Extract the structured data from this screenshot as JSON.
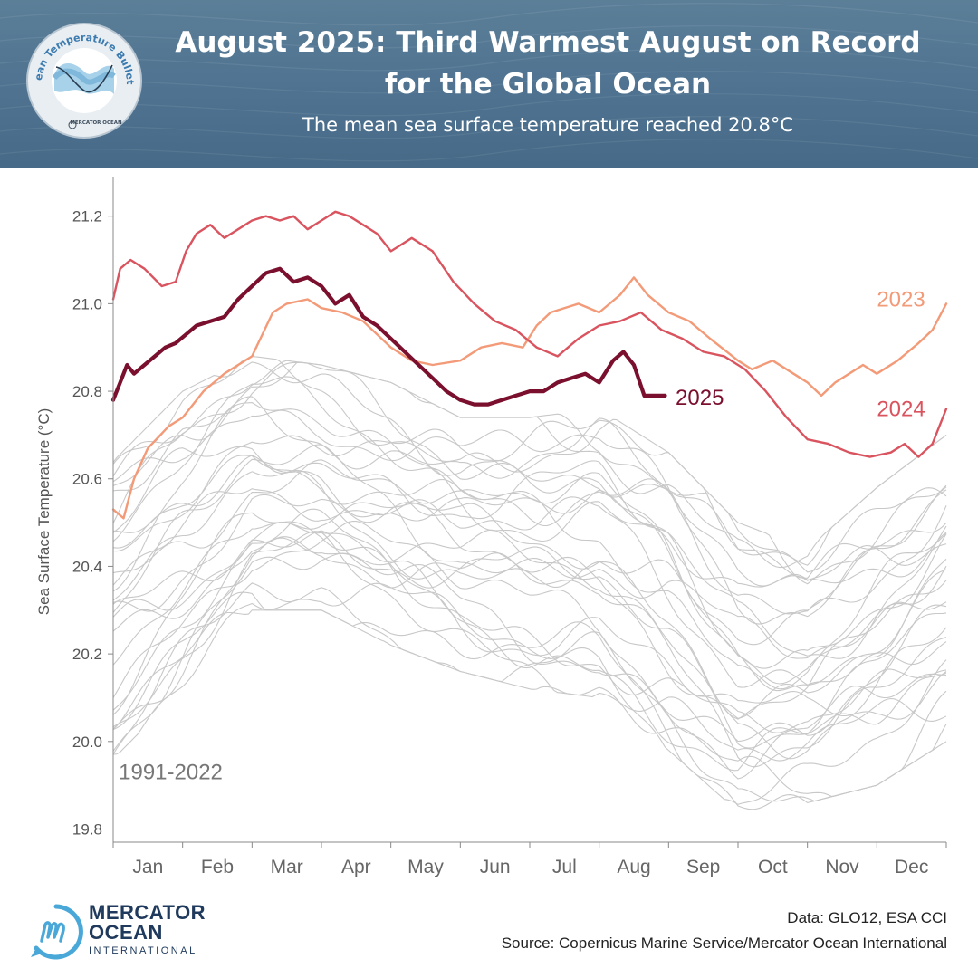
{
  "header": {
    "title_line1": "August 2025: Third Warmest August on Record",
    "title_line2": "for the Global Ocean",
    "subtitle": "The mean sea surface temperature reached 20.8°C"
  },
  "badge": {
    "ring_text": "Ocean Temperature Bulletin",
    "org": "MERCATOR OCEAN",
    "icon": "bulletin-badge-icon"
  },
  "footer": {
    "logo_line1": "MERCATOR",
    "logo_line2": "OCEAN",
    "logo_line3": "INTERNATIONAL",
    "data_credit": "Data: GLO12, ESA CCI",
    "source_credit": "Source: Copernicus Marine Service/Mercator Ocean International"
  },
  "colors": {
    "header_bg": "#4e7290",
    "y2025": "#7a0f2e",
    "y2024": "#d9545f",
    "y2023": "#f39a78",
    "historical": "#c8c8c8",
    "logo_blue": "#4aa8d8",
    "logo_text": "#1f3a5c"
  },
  "chart_data": {
    "type": "line",
    "title": "August 2025: Third Warmest August on Record for the Global Ocean",
    "ylabel": "Sea Surface Temperature (°C)",
    "xlabel": "",
    "ylim": [
      19.77,
      21.28
    ],
    "yticks": [
      19.8,
      20.0,
      20.2,
      20.4,
      20.6,
      20.8,
      21.0,
      21.2
    ],
    "grid": false,
    "x_unit": "month (0 = start of Jan, 12 = end of Dec)",
    "months": [
      "Jan",
      "Feb",
      "Mar",
      "Apr",
      "May",
      "Jun",
      "Jul",
      "Aug",
      "Sep",
      "Oct",
      "Nov",
      "Dec"
    ],
    "historical_label": "1991-2022",
    "historical_envelope": {
      "x": [
        0,
        1,
        2,
        3,
        4,
        5,
        6,
        7,
        8,
        9,
        10,
        11,
        12
      ],
      "low": [
        19.96,
        20.12,
        20.3,
        20.3,
        20.22,
        20.16,
        20.12,
        20.1,
        19.98,
        19.84,
        19.86,
        19.9,
        20.0
      ],
      "high": [
        20.64,
        20.8,
        20.88,
        20.86,
        20.82,
        20.74,
        20.74,
        20.76,
        20.66,
        20.5,
        20.44,
        20.58,
        20.7
      ]
    },
    "series": [
      {
        "name": "2023",
        "x": [
          0,
          0.15,
          0.3,
          0.5,
          0.8,
          1.0,
          1.3,
          1.6,
          2.0,
          2.3,
          2.5,
          2.8,
          3.0,
          3.3,
          3.6,
          4.0,
          4.3,
          4.6,
          5.0,
          5.3,
          5.6,
          5.9,
          6.1,
          6.3,
          6.7,
          7.0,
          7.3,
          7.5,
          7.7,
          8.0,
          8.3,
          8.6,
          9.0,
          9.2,
          9.5,
          9.8,
          10.0,
          10.2,
          10.4,
          10.6,
          10.8,
          11.0,
          11.3,
          11.6,
          11.8,
          12.0
        ],
        "y": [
          20.53,
          20.51,
          20.6,
          20.67,
          20.72,
          20.74,
          20.8,
          20.84,
          20.88,
          20.98,
          21.0,
          21.01,
          20.99,
          20.98,
          20.96,
          20.9,
          20.87,
          20.86,
          20.87,
          20.9,
          20.91,
          20.9,
          20.95,
          20.98,
          21.0,
          20.98,
          21.02,
          21.06,
          21.02,
          20.98,
          20.96,
          20.92,
          20.87,
          20.85,
          20.87,
          20.84,
          20.82,
          20.79,
          20.82,
          20.84,
          20.86,
          20.84,
          20.87,
          20.91,
          20.94,
          21.0
        ]
      },
      {
        "name": "2024",
        "x": [
          0,
          0.1,
          0.25,
          0.45,
          0.7,
          0.9,
          1.05,
          1.2,
          1.4,
          1.6,
          1.8,
          2.0,
          2.2,
          2.4,
          2.6,
          2.8,
          3.0,
          3.2,
          3.4,
          3.6,
          3.8,
          4.0,
          4.3,
          4.6,
          4.9,
          5.2,
          5.5,
          5.8,
          6.1,
          6.4,
          6.7,
          7.0,
          7.3,
          7.6,
          7.9,
          8.2,
          8.5,
          8.8,
          9.1,
          9.4,
          9.7,
          10.0,
          10.3,
          10.6,
          10.9,
          11.2,
          11.4,
          11.6,
          11.8,
          12.0
        ],
        "y": [
          21.01,
          21.08,
          21.1,
          21.08,
          21.04,
          21.05,
          21.12,
          21.16,
          21.18,
          21.15,
          21.17,
          21.19,
          21.2,
          21.19,
          21.2,
          21.17,
          21.19,
          21.21,
          21.2,
          21.18,
          21.16,
          21.12,
          21.15,
          21.12,
          21.05,
          21.0,
          20.96,
          20.94,
          20.9,
          20.88,
          20.92,
          20.95,
          20.96,
          20.98,
          20.94,
          20.92,
          20.89,
          20.88,
          20.85,
          20.8,
          20.74,
          20.69,
          20.68,
          20.66,
          20.65,
          20.66,
          20.68,
          20.65,
          20.68,
          20.76
        ]
      },
      {
        "name": "2025",
        "x": [
          0,
          0.1,
          0.2,
          0.3,
          0.45,
          0.6,
          0.75,
          0.9,
          1.05,
          1.2,
          1.4,
          1.6,
          1.8,
          2.0,
          2.2,
          2.4,
          2.6,
          2.8,
          3.0,
          3.2,
          3.4,
          3.6,
          3.8,
          4.0,
          4.2,
          4.4,
          4.6,
          4.8,
          5.0,
          5.2,
          5.4,
          5.6,
          5.8,
          6.0,
          6.2,
          6.4,
          6.6,
          6.8,
          7.0,
          7.2,
          7.35,
          7.5,
          7.65,
          7.8,
          7.95
        ],
        "y": [
          20.78,
          20.82,
          20.86,
          20.84,
          20.86,
          20.88,
          20.9,
          20.91,
          20.93,
          20.95,
          20.96,
          20.97,
          21.01,
          21.04,
          21.07,
          21.08,
          21.05,
          21.06,
          21.04,
          21.0,
          21.02,
          20.97,
          20.95,
          20.92,
          20.89,
          20.86,
          20.83,
          20.8,
          20.78,
          20.77,
          20.77,
          20.78,
          20.79,
          20.8,
          20.8,
          20.82,
          20.83,
          20.84,
          20.82,
          20.87,
          20.89,
          20.86,
          20.79,
          20.79,
          20.79
        ]
      }
    ],
    "annotations": [
      {
        "text": "2025",
        "series": "2025"
      },
      {
        "text": "2024",
        "series": "2024"
      },
      {
        "text": "2023",
        "series": "2023"
      },
      {
        "text": "1991-2022",
        "series": "historical"
      }
    ]
  }
}
